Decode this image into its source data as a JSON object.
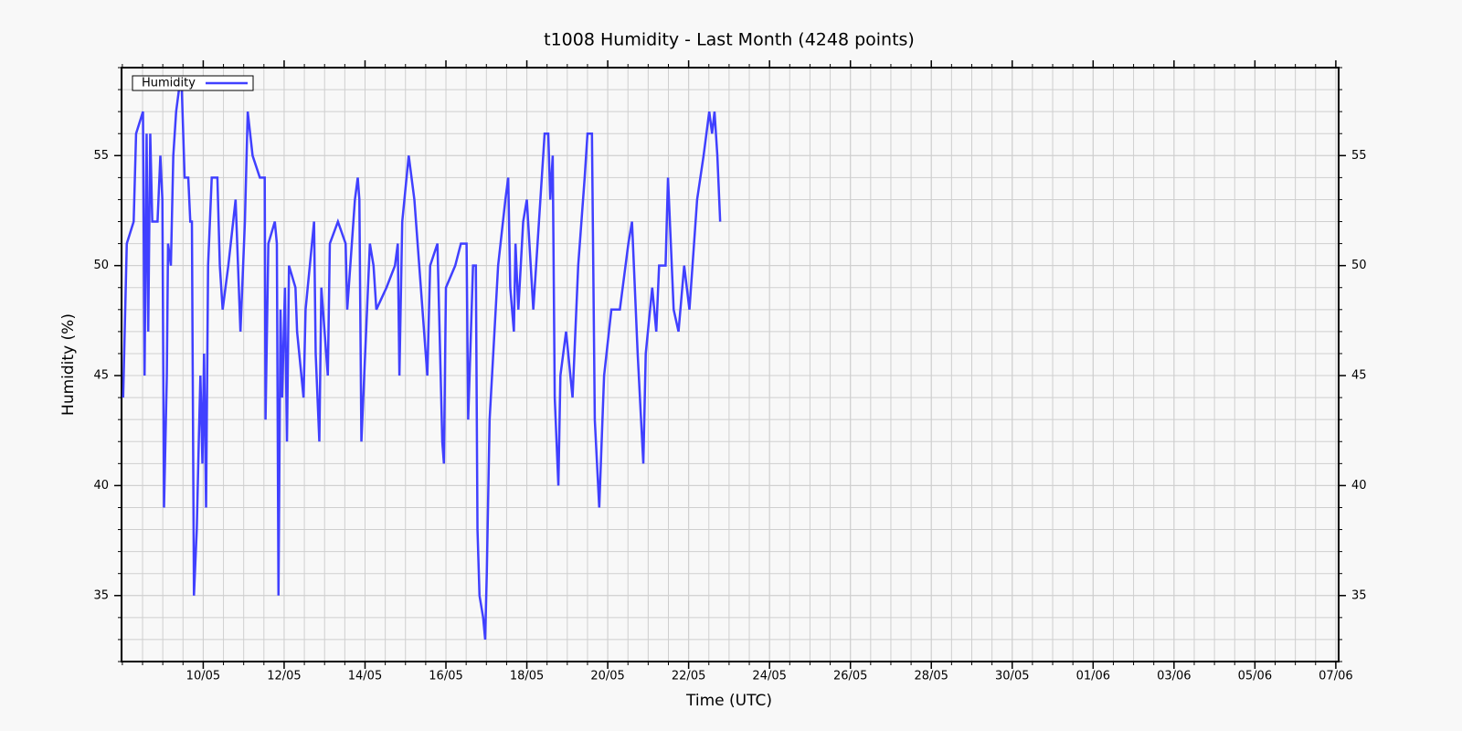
{
  "chart_data": {
    "type": "line",
    "title": "t1008 Humidity - Last Month (4248 points)",
    "xlabel": "Time (UTC)",
    "ylabel": "Humidity (%)",
    "xlim": [
      7.98,
      38.07
    ],
    "ylim": [
      32,
      59
    ],
    "xticks": [
      {
        "value": 10,
        "label": "10/05"
      },
      {
        "value": 12,
        "label": "12/05"
      },
      {
        "value": 14,
        "label": "14/05"
      },
      {
        "value": 16,
        "label": "16/05"
      },
      {
        "value": 18,
        "label": "18/05"
      },
      {
        "value": 20,
        "label": "20/05"
      },
      {
        "value": 22,
        "label": "22/05"
      },
      {
        "value": 24,
        "label": "24/05"
      },
      {
        "value": 26,
        "label": "26/05"
      },
      {
        "value": 28,
        "label": "28/05"
      },
      {
        "value": 30,
        "label": "30/05"
      },
      {
        "value": 32,
        "label": "01/06"
      },
      {
        "value": 34,
        "label": "03/06"
      },
      {
        "value": 36,
        "label": "05/06"
      },
      {
        "value": 38,
        "label": "07/06"
      }
    ],
    "yticks": [
      35,
      40,
      45,
      50,
      55
    ],
    "grid": true,
    "legend": "upper left",
    "x": [
      8.02,
      8.11,
      8.28,
      8.34,
      8.51,
      8.55,
      8.6,
      8.64,
      8.69,
      8.74,
      8.87,
      8.94,
      8.99,
      9.03,
      9.1,
      9.13,
      9.2,
      9.26,
      9.33,
      9.4,
      9.47,
      9.54,
      9.63,
      9.68,
      9.72,
      9.77,
      9.84,
      9.89,
      9.93,
      9.98,
      10.02,
      10.07,
      10.12,
      10.21,
      10.35,
      10.41,
      10.48,
      10.62,
      10.8,
      10.92,
      11.03,
      11.1,
      11.22,
      11.4,
      11.52,
      11.54,
      11.61,
      11.77,
      11.82,
      11.86,
      11.91,
      11.95,
      12.02,
      12.07,
      12.12,
      12.28,
      12.32,
      12.48,
      12.53,
      12.74,
      12.78,
      12.87,
      12.92,
      13.08,
      13.13,
      13.33,
      13.52,
      13.56,
      13.75,
      13.82,
      13.86,
      13.91,
      13.98,
      14.12,
      14.21,
      14.28,
      14.53,
      14.74,
      14.81,
      14.85,
      14.92,
      15.08,
      15.22,
      15.38,
      15.54,
      15.61,
      15.79,
      15.91,
      15.95,
      16.0,
      16.23,
      16.37,
      16.51,
      16.55,
      16.67,
      16.74,
      16.78,
      16.83,
      16.92,
      16.97,
      17.01,
      17.08,
      17.29,
      17.47,
      17.54,
      17.59,
      17.68,
      17.72,
      17.79,
      17.91,
      18.0,
      18.16,
      18.3,
      18.44,
      18.53,
      18.58,
      18.64,
      18.69,
      18.78,
      18.83,
      18.97,
      19.13,
      19.27,
      19.43,
      19.5,
      19.61,
      19.68,
      19.79,
      19.91,
      20.09,
      20.3,
      20.51,
      20.6,
      20.74,
      20.88,
      20.94,
      21.1,
      21.2,
      21.27,
      21.43,
      21.49,
      21.63,
      21.75,
      21.89,
      22.02,
      22.21,
      22.37,
      22.51,
      22.58,
      22.64,
      22.71,
      22.78
    ],
    "series": [
      {
        "name": "Humidity",
        "color": "#4040ff",
        "values": [
          44,
          51,
          52,
          56,
          57,
          45,
          56,
          47,
          56,
          52,
          52,
          55,
          53,
          39,
          45,
          51,
          50,
          55,
          57,
          58,
          58,
          54,
          54,
          52,
          52,
          35,
          38,
          42,
          45,
          41,
          46,
          39,
          50,
          54,
          54,
          50,
          48,
          50,
          53,
          47,
          52,
          57,
          55,
          54,
          54,
          43,
          51,
          52,
          51,
          35,
          48,
          44,
          49,
          42,
          50,
          49,
          47,
          44,
          48,
          52,
          46,
          42,
          49,
          45,
          51,
          52,
          51,
          48,
          53,
          54,
          53,
          42,
          45,
          51,
          50,
          48,
          49,
          50,
          51,
          45,
          52,
          55,
          53,
          49,
          45,
          50,
          51,
          42,
          41,
          49,
          50,
          51,
          51,
          43,
          50,
          50,
          38,
          35,
          34,
          33,
          36,
          43,
          50,
          53,
          54,
          49,
          47,
          51,
          48,
          52,
          53,
          48,
          52,
          56,
          56,
          53,
          55,
          44,
          40,
          45,
          47,
          44,
          50,
          54,
          56,
          56,
          43,
          39,
          45,
          48,
          48,
          51,
          52,
          46,
          41,
          46,
          49,
          47,
          50,
          50,
          54,
          48,
          47,
          50,
          48,
          53,
          55,
          57,
          56,
          57,
          55,
          52
        ]
      }
    ]
  }
}
